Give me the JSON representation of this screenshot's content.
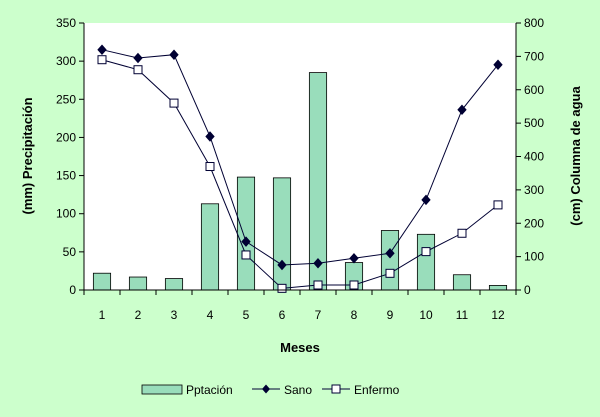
{
  "chart_data": {
    "type": "bar",
    "x_label": "Meses",
    "y_left_label": "(mm) Precipitación",
    "y_right_label": "(cm) Columna de agua",
    "y_left_lim": [
      0,
      350
    ],
    "y_left_ticks": [
      0,
      50,
      100,
      150,
      200,
      250,
      300,
      350
    ],
    "y_right_lim": [
      0,
      800
    ],
    "y_right_ticks": [
      0,
      100,
      200,
      300,
      400,
      500,
      600,
      700,
      800
    ],
    "categories": [
      "1",
      "2",
      "3",
      "4",
      "5",
      "6",
      "7",
      "8",
      "9",
      "10",
      "11",
      "12"
    ],
    "series": [
      {
        "name": "Pptación",
        "type": "bar",
        "axis": "left",
        "values": [
          22,
          17,
          15,
          113,
          148,
          147,
          285,
          36,
          78,
          73,
          20,
          6
        ]
      },
      {
        "name": "Sano",
        "type": "line",
        "marker": "diamond",
        "axis": "right",
        "values": [
          720,
          695,
          705,
          460,
          145,
          75,
          80,
          95,
          110,
          270,
          540,
          675
        ]
      },
      {
        "name": "Enfermo",
        "type": "line",
        "marker": "square-open",
        "axis": "right",
        "values": [
          690,
          660,
          560,
          370,
          105,
          5,
          15,
          15,
          50,
          115,
          170,
          255
        ]
      }
    ],
    "colors": {
      "bar_fill": "#99ddbb",
      "line": "#000033",
      "background": "#ccffcc",
      "plot_bg": "#ffffff"
    },
    "legend": "bottom"
  }
}
